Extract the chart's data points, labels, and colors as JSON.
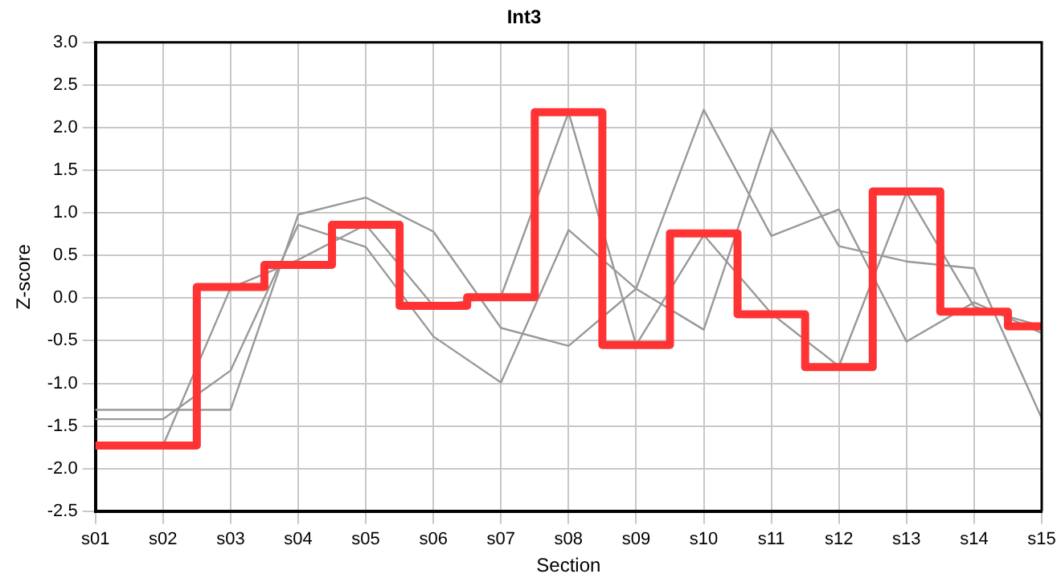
{
  "chart_data": {
    "type": "line",
    "title": "Int3",
    "xlabel": "Section",
    "ylabel": "Z-score",
    "categories": [
      "s01",
      "s02",
      "s03",
      "s04",
      "s05",
      "s06",
      "s07",
      "s08",
      "s09",
      "s10",
      "s11",
      "s12",
      "s13",
      "s14",
      "s15"
    ],
    "series": [
      {
        "type": "line",
        "color": "#999999",
        "values": [
          -1.31,
          -1.31,
          -1.31,
          0.98,
          1.18,
          0.78,
          -0.35,
          -0.56,
          0.11,
          2.21,
          0.73,
          1.04,
          -0.51,
          -0.05,
          -0.41
        ]
      },
      {
        "type": "line",
        "color": "#999999",
        "values": [
          -1.42,
          -1.42,
          -0.85,
          0.86,
          0.6,
          -0.45,
          -0.99,
          0.8,
          0.11,
          -0.37,
          1.99,
          0.61,
          0.43,
          0.35,
          -1.41
        ]
      },
      {
        "type": "line",
        "color": "#999999",
        "values": [
          null,
          -1.73,
          0.12,
          0.45,
          0.86,
          -0.09,
          0.02,
          2.18,
          -0.55,
          0.74,
          -0.18,
          -0.8,
          1.24,
          -0.1,
          -0.33
        ]
      },
      {
        "type": "step",
        "color": "#ff3333",
        "values": [
          -1.73,
          -1.73,
          0.13,
          0.39,
          0.86,
          -0.09,
          0.01,
          2.18,
          -0.55,
          0.76,
          -0.19,
          -0.81,
          1.25,
          -0.16,
          -0.33
        ]
      }
    ],
    "ylim": [
      -2.5,
      3.0
    ],
    "yticks": [
      {
        "value": -2.5,
        "label": "-2.5"
      },
      {
        "value": -2,
        "label": "-2.0"
      },
      {
        "value": -1.5,
        "label": "-1.5"
      },
      {
        "value": -1,
        "label": "-1.0"
      },
      {
        "value": -0.5,
        "label": "-0.5"
      },
      {
        "value": 0,
        "label": "0.0"
      },
      {
        "value": 0.5,
        "label": "0.5"
      },
      {
        "value": 1,
        "label": "1.0"
      },
      {
        "value": 1.5,
        "label": "1.5"
      },
      {
        "value": 2,
        "label": "2.0"
      },
      {
        "value": 2.5,
        "label": "2.5"
      },
      {
        "value": 3,
        "label": "3.0"
      }
    ],
    "grid": true,
    "legend": false,
    "marker": "none"
  }
}
